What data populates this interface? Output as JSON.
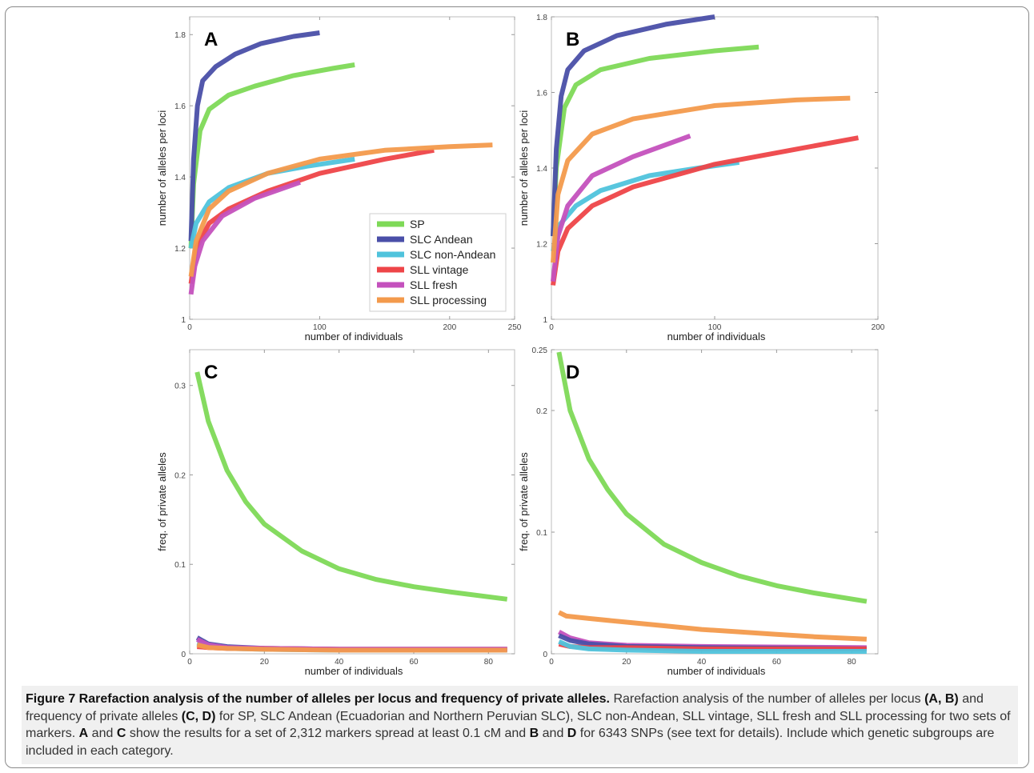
{
  "caption": {
    "lead": "Figure 7 Rarefaction analysis of the number of alleles per locus and frequency of private alleles.",
    "text1": " Rarefaction analysis of the number of alleles per locus ",
    "b1": "(A, B)",
    "text2": " and frequency of private alleles ",
    "b2": "(C, D)",
    "text3": " for SP, SLC Andean (Ecuadorian and Northern Peruvian SLC), SLC non-Andean, SLL vintage, SLL fresh and SLL processing for two sets of markers. ",
    "b3": "A",
    "text4": " and ",
    "b4": "C",
    "text5": " show the results for a set of 2,312 markers spread at least 0.1 cM and ",
    "b5": "B",
    "text6": " and ",
    "b6": "D",
    "text7": " for 6343 SNPs (see text for details). Include which genetic subgroups are included in each category."
  },
  "colors": {
    "SP": "#7ed957",
    "SLC Andean": "#4a4fa8",
    "SLC non-Andean": "#4fc3dc",
    "SLL vintage": "#ee4548",
    "SLL fresh": "#c451bd",
    "SLL processing": "#f39a4c"
  },
  "legend": [
    "SP",
    "SLC Andean",
    "SLC non-Andean",
    "SLL vintage",
    "SLL fresh",
    "SLL processing"
  ],
  "chart_data": [
    {
      "panel": "A",
      "type": "line",
      "xlabel": "number of individuals",
      "ylabel": "number of alleles per loci",
      "xlim": [
        0,
        250
      ],
      "ylim": [
        1.0,
        1.85
      ],
      "xticks": [
        0,
        100,
        200,
        250
      ],
      "yticks": [
        1.0,
        1.2,
        1.4,
        1.6,
        1.8
      ],
      "series": [
        {
          "name": "SP",
          "x": [
            1,
            3,
            8,
            15,
            30,
            50,
            80,
            110,
            127
          ],
          "y": [
            1.2,
            1.38,
            1.53,
            1.59,
            1.63,
            1.655,
            1.685,
            1.705,
            1.715
          ]
        },
        {
          "name": "SLC Andean",
          "x": [
            1,
            3,
            6,
            10,
            20,
            35,
            55,
            80,
            100
          ],
          "y": [
            1.22,
            1.45,
            1.6,
            1.67,
            1.71,
            1.745,
            1.775,
            1.795,
            1.805
          ]
        },
        {
          "name": "SLC non-Andean",
          "x": [
            1,
            5,
            15,
            30,
            60,
            90,
            127
          ],
          "y": [
            1.2,
            1.27,
            1.33,
            1.37,
            1.41,
            1.43,
            1.45
          ]
        },
        {
          "name": "SLL vintage",
          "x": [
            1,
            5,
            15,
            30,
            60,
            100,
            150,
            188
          ],
          "y": [
            1.1,
            1.2,
            1.27,
            1.31,
            1.36,
            1.41,
            1.45,
            1.475
          ]
        },
        {
          "name": "SLL fresh",
          "x": [
            1,
            4,
            10,
            25,
            50,
            85
          ],
          "y": [
            1.07,
            1.15,
            1.22,
            1.29,
            1.34,
            1.385
          ]
        },
        {
          "name": "SLL processing",
          "x": [
            1,
            5,
            15,
            30,
            60,
            100,
            150,
            200,
            233
          ],
          "y": [
            1.12,
            1.22,
            1.31,
            1.36,
            1.41,
            1.45,
            1.475,
            1.485,
            1.49
          ]
        }
      ]
    },
    {
      "panel": "B",
      "type": "line",
      "xlabel": "number of individuals",
      "ylabel": "number of alleles per loci",
      "xlim": [
        0,
        200
      ],
      "ylim": [
        1.0,
        1.8
      ],
      "xticks": [
        0,
        100,
        200
      ],
      "yticks": [
        1.0,
        1.2,
        1.4,
        1.6,
        1.8
      ],
      "series": [
        {
          "name": "SP",
          "x": [
            1,
            3,
            8,
            15,
            30,
            60,
            100,
            127
          ],
          "y": [
            1.22,
            1.4,
            1.56,
            1.62,
            1.66,
            1.69,
            1.71,
            1.72
          ]
        },
        {
          "name": "SLC Andean",
          "x": [
            1,
            3,
            6,
            10,
            20,
            40,
            70,
            100
          ],
          "y": [
            1.22,
            1.45,
            1.59,
            1.66,
            1.71,
            1.75,
            1.78,
            1.8
          ]
        },
        {
          "name": "SLC non-Andean",
          "x": [
            1,
            5,
            15,
            30,
            60,
            90,
            115
          ],
          "y": [
            1.18,
            1.25,
            1.3,
            1.34,
            1.38,
            1.4,
            1.415
          ]
        },
        {
          "name": "SLL vintage",
          "x": [
            1,
            4,
            10,
            25,
            50,
            100,
            150,
            188
          ],
          "y": [
            1.09,
            1.18,
            1.24,
            1.3,
            1.35,
            1.41,
            1.45,
            1.48
          ]
        },
        {
          "name": "SLL fresh",
          "x": [
            1,
            4,
            10,
            25,
            50,
            85
          ],
          "y": [
            1.1,
            1.22,
            1.3,
            1.38,
            1.43,
            1.485
          ]
        },
        {
          "name": "SLL processing",
          "x": [
            1,
            4,
            10,
            25,
            50,
            100,
            150,
            183
          ],
          "y": [
            1.15,
            1.33,
            1.42,
            1.49,
            1.53,
            1.565,
            1.58,
            1.585
          ]
        }
      ]
    },
    {
      "panel": "C",
      "type": "line",
      "xlabel": "number of individuals",
      "ylabel": "freq. of private alleles",
      "xlim": [
        0,
        87
      ],
      "ylim": [
        0,
        0.34
      ],
      "xticks": [
        0,
        20,
        40,
        60,
        80
      ],
      "yticks": [
        0,
        0.1,
        0.2,
        0.3
      ],
      "series": [
        {
          "name": "SP",
          "x": [
            2,
            5,
            10,
            15,
            20,
            30,
            40,
            50,
            60,
            70,
            85
          ],
          "y": [
            0.315,
            0.26,
            0.205,
            0.17,
            0.145,
            0.115,
            0.095,
            0.083,
            0.075,
            0.069,
            0.061
          ]
        },
        {
          "name": "SLC Andean",
          "x": [
            2,
            5,
            10,
            20,
            40,
            85
          ],
          "y": [
            0.018,
            0.011,
            0.008,
            0.006,
            0.005,
            0.005
          ]
        },
        {
          "name": "SLC non-Andean",
          "x": [
            2,
            5,
            10,
            20,
            40,
            85
          ],
          "y": [
            0.012,
            0.009,
            0.006,
            0.005,
            0.004,
            0.004
          ]
        },
        {
          "name": "SLL vintage",
          "x": [
            2,
            5,
            10,
            20,
            40,
            85
          ],
          "y": [
            0.008,
            0.007,
            0.006,
            0.006,
            0.005,
            0.005
          ]
        },
        {
          "name": "SLL fresh",
          "x": [
            2,
            5,
            10,
            20,
            40,
            85
          ],
          "y": [
            0.016,
            0.01,
            0.007,
            0.006,
            0.005,
            0.005
          ]
        },
        {
          "name": "SLL processing",
          "x": [
            2,
            5,
            10,
            20,
            40,
            85
          ],
          "y": [
            0.01,
            0.007,
            0.006,
            0.005,
            0.004,
            0.004
          ]
        }
      ]
    },
    {
      "panel": "D",
      "type": "line",
      "xlabel": "number of individuals",
      "ylabel": "freq. of private alleles",
      "xlim": [
        0,
        87
      ],
      "ylim": [
        0,
        0.25
      ],
      "xticks": [
        0,
        20,
        40,
        60,
        80
      ],
      "yticks": [
        0,
        0.1,
        0.2,
        0.25
      ],
      "series": [
        {
          "name": "SP",
          "x": [
            2,
            5,
            10,
            15,
            20,
            30,
            40,
            50,
            60,
            70,
            84
          ],
          "y": [
            0.248,
            0.2,
            0.16,
            0.135,
            0.115,
            0.09,
            0.075,
            0.064,
            0.056,
            0.05,
            0.043
          ]
        },
        {
          "name": "SLL processing",
          "x": [
            2,
            4,
            10,
            20,
            30,
            40,
            50,
            60,
            70,
            84
          ],
          "y": [
            0.034,
            0.031,
            0.029,
            0.026,
            0.023,
            0.02,
            0.018,
            0.016,
            0.014,
            0.012
          ]
        },
        {
          "name": "SLL fresh",
          "x": [
            2,
            5,
            10,
            20,
            40,
            84
          ],
          "y": [
            0.018,
            0.013,
            0.009,
            0.007,
            0.006,
            0.005
          ]
        },
        {
          "name": "SLC Andean",
          "x": [
            2,
            5,
            10,
            20,
            40,
            84
          ],
          "y": [
            0.015,
            0.011,
            0.008,
            0.006,
            0.005,
            0.004
          ]
        },
        {
          "name": "SLL vintage",
          "x": [
            2,
            5,
            10,
            20,
            40,
            84
          ],
          "y": [
            0.008,
            0.006,
            0.005,
            0.005,
            0.004,
            0.004
          ]
        },
        {
          "name": "SLC non-Andean",
          "x": [
            2,
            5,
            10,
            20,
            40,
            84
          ],
          "y": [
            0.01,
            0.006,
            0.004,
            0.003,
            0.002,
            0.002
          ]
        }
      ]
    }
  ]
}
